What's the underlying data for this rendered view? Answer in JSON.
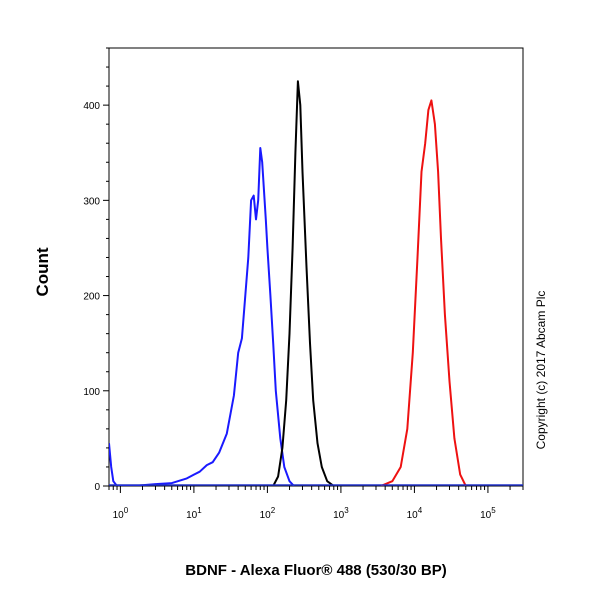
{
  "chart_data": {
    "type": "line",
    "title": "",
    "xlabel": "BDNF - Alexa Fluor® 488 (530/30 BP)",
    "ylabel": "Count",
    "x_scale": "log",
    "xlim": [
      0.7,
      300000
    ],
    "ylim": [
      0,
      460
    ],
    "y_ticks": [
      0,
      100,
      200,
      300,
      400
    ],
    "x_ticks": [
      {
        "base": "10",
        "exp": "0",
        "value": 1
      },
      {
        "base": "10",
        "exp": "1",
        "value": 10
      },
      {
        "base": "10",
        "exp": "2",
        "value": 100
      },
      {
        "base": "10",
        "exp": "3",
        "value": 1000
      },
      {
        "base": "10",
        "exp": "4",
        "value": 10000
      },
      {
        "base": "10",
        "exp": "5",
        "value": 100000
      }
    ],
    "grid": false,
    "legend": "none",
    "annotation": "Copyright (c) 2017 Abcam Plc",
    "series": [
      {
        "color": "#1a1aff",
        "x": [
          0.7,
          0.75,
          0.8,
          0.9,
          1.5,
          3,
          5,
          8,
          10,
          12,
          15,
          18,
          22,
          28,
          35,
          40,
          45,
          50,
          55,
          60,
          65,
          70,
          75,
          80,
          85,
          90,
          95,
          100,
          110,
          120,
          130,
          150,
          170,
          200,
          230
        ],
        "y": [
          45,
          20,
          5,
          0,
          0,
          2,
          3,
          8,
          12,
          15,
          22,
          25,
          35,
          55,
          95,
          140,
          155,
          200,
          240,
          300,
          305,
          280,
          300,
          355,
          340,
          310,
          280,
          250,
          200,
          150,
          100,
          50,
          20,
          5,
          0
        ]
      },
      {
        "color": "#000000",
        "x": [
          120,
          140,
          160,
          180,
          200,
          220,
          240,
          260,
          280,
          300,
          340,
          380,
          420,
          480,
          550,
          650,
          800
        ],
        "y": [
          0,
          10,
          40,
          90,
          160,
          250,
          350,
          425,
          400,
          330,
          230,
          150,
          90,
          45,
          20,
          5,
          0
        ]
      },
      {
        "color": "#ee1111",
        "x": [
          3500,
          5000,
          6500,
          8000,
          9500,
          11000,
          12500,
          14000,
          15500,
          17000,
          19000,
          21000,
          23000,
          26000,
          30000,
          35000,
          42000,
          50000
        ],
        "y": [
          0,
          5,
          20,
          60,
          140,
          240,
          330,
          360,
          395,
          405,
          380,
          330,
          260,
          180,
          110,
          50,
          12,
          0
        ]
      }
    ]
  }
}
